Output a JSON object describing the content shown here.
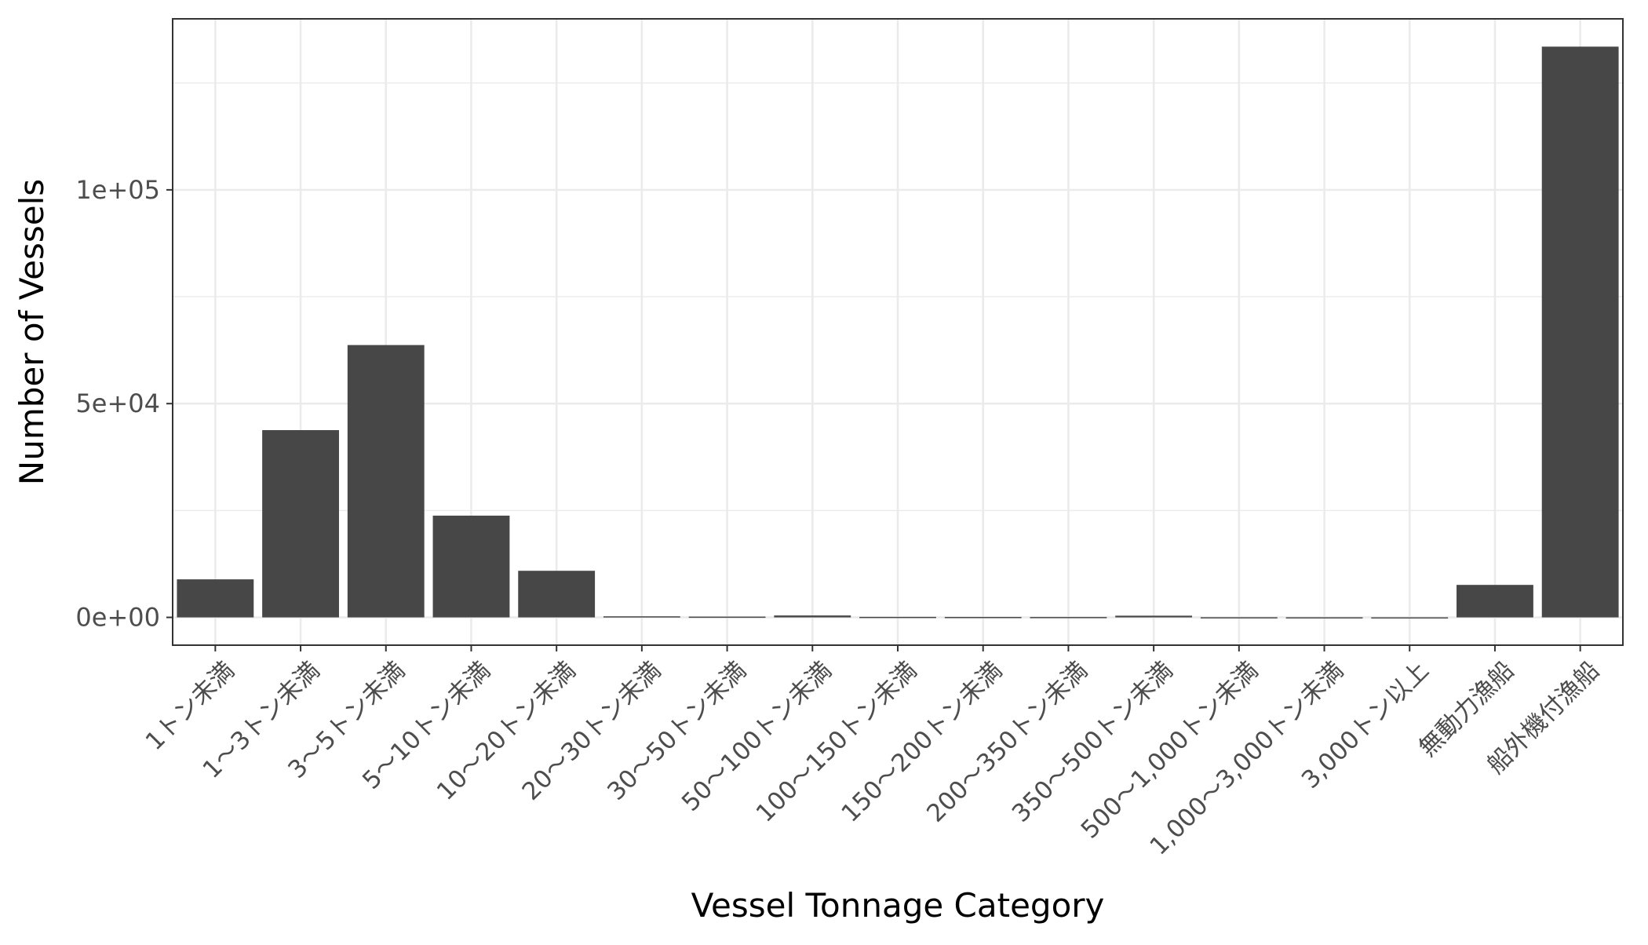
{
  "chart_data": {
    "type": "bar",
    "title": "",
    "xlabel": "Vessel Tonnage Category",
    "ylabel": "Number of Vessels",
    "categories": [
      "1トン未満",
      "1～3トン未満",
      "3～5トン未満",
      "5～10トン未満",
      "10～20トン未満",
      "20～30トン未満",
      "30～50トン未満",
      "50～100トン未満",
      "100～150トン未満",
      "150～200トン未満",
      "200～350トン未満",
      "350～500トン未満",
      "500～1,000トン未満",
      "1,000～3,000トン未満",
      "3,000トン以上",
      "無動力漁船",
      "船外機付漁船"
    ],
    "values": [
      8900,
      43800,
      63700,
      23800,
      10900,
      250,
      180,
      450,
      120,
      100,
      90,
      400,
      30,
      20,
      10,
      7600,
      133500
    ],
    "ylim": [
      -6500,
      140000
    ],
    "y_ticks": [
      {
        "value": 0,
        "label": "0e+00"
      },
      {
        "value": 50000,
        "label": "5e+04"
      },
      {
        "value": 100000,
        "label": "1e+05"
      }
    ],
    "y_minor_ticks": [
      25000,
      75000,
      125000
    ],
    "grid": true,
    "legend": "none",
    "colors": {
      "bar": "#474747",
      "grid": "#ebebeb",
      "panel_border": "#333333",
      "text": "#4d4d4d",
      "axis_title": "#000000"
    }
  }
}
